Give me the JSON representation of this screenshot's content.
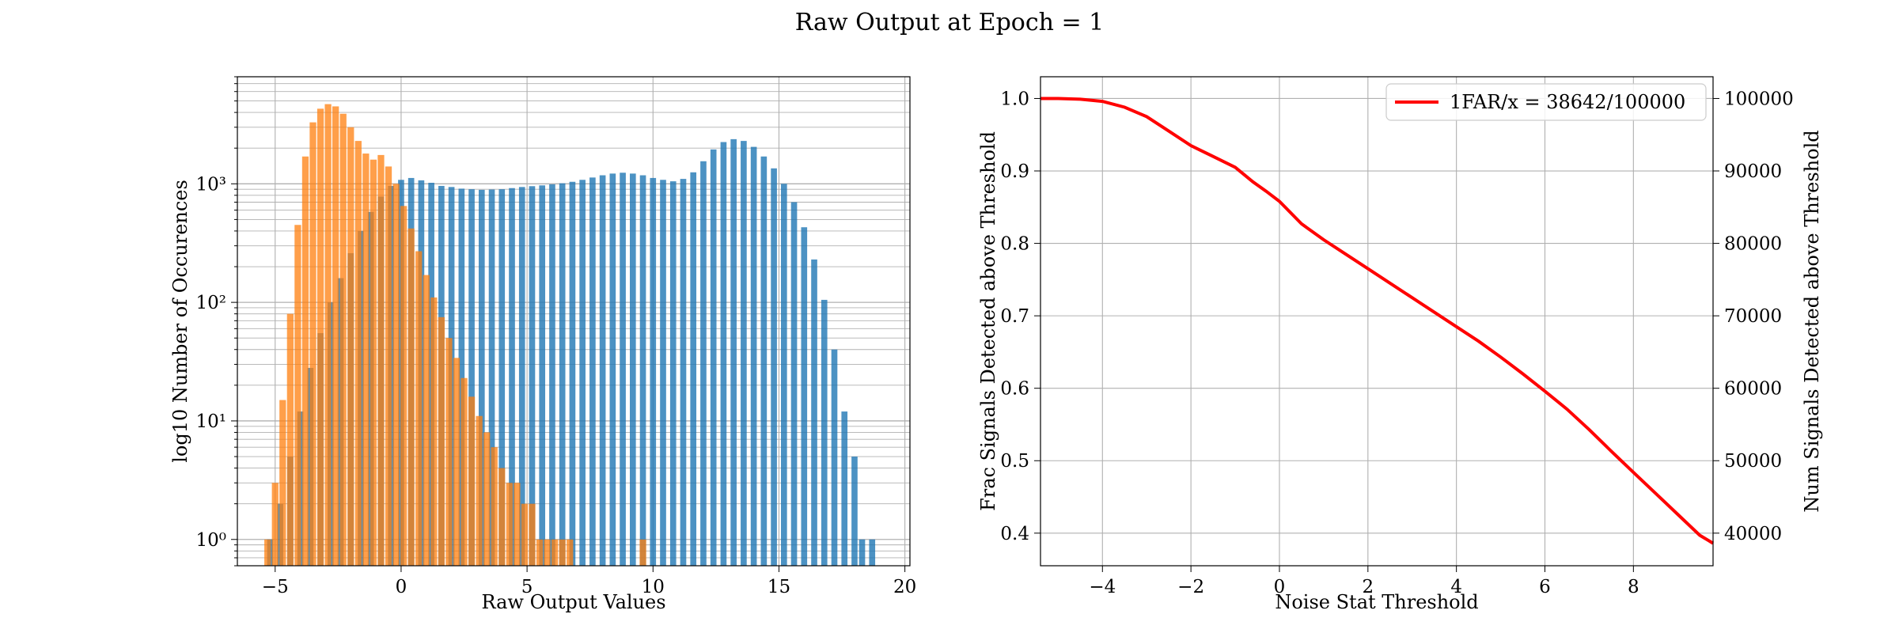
{
  "figure": {
    "title": "Raw Output at Epoch = 1"
  },
  "chart_data": [
    {
      "type": "bar",
      "subtype": "histogram",
      "yscale": "log",
      "xlabel": "Raw Output Values",
      "ylabel": "log10 Number of Occurences",
      "xlim": [
        -6.5,
        20.2
      ],
      "ylim": [
        0.6,
        8000
      ],
      "xticks": [
        -5,
        0,
        5,
        10,
        15,
        20
      ],
      "xtick_labels": [
        "−5",
        "0",
        "5",
        "10",
        "15",
        "20"
      ],
      "yticks": [
        1,
        10,
        100,
        1000
      ],
      "ytick_labels": [
        "10⁰",
        "10¹",
        "10²",
        "10³"
      ],
      "grid": true,
      "series": [
        {
          "color": "#1f77b4",
          "alpha": 0.8,
          "bin_width": 0.24,
          "points": [
            [
              -5.2,
              1
            ],
            [
              -4.8,
              2
            ],
            [
              -4.4,
              5
            ],
            [
              -4.0,
              12
            ],
            [
              -3.6,
              28
            ],
            [
              -3.2,
              55
            ],
            [
              -2.8,
              100
            ],
            [
              -2.4,
              160
            ],
            [
              -2.0,
              260
            ],
            [
              -1.6,
              400
            ],
            [
              -1.2,
              580
            ],
            [
              -0.8,
              780
            ],
            [
              -0.4,
              960
            ],
            [
              0.0,
              1080
            ],
            [
              0.4,
              1120
            ],
            [
              0.8,
              1070
            ],
            [
              1.2,
              1020
            ],
            [
              1.6,
              960
            ],
            [
              2.0,
              940
            ],
            [
              2.4,
              910
            ],
            [
              2.8,
              900
            ],
            [
              3.2,
              890
            ],
            [
              3.6,
              895
            ],
            [
              4.0,
              900
            ],
            [
              4.4,
              920
            ],
            [
              4.8,
              940
            ],
            [
              5.2,
              955
            ],
            [
              5.6,
              970
            ],
            [
              6.0,
              990
            ],
            [
              6.4,
              1010
            ],
            [
              6.8,
              1040
            ],
            [
              7.2,
              1080
            ],
            [
              7.6,
              1130
            ],
            [
              8.0,
              1180
            ],
            [
              8.4,
              1220
            ],
            [
              8.8,
              1240
            ],
            [
              9.2,
              1220
            ],
            [
              9.6,
              1180
            ],
            [
              10.0,
              1120
            ],
            [
              10.4,
              1080
            ],
            [
              10.8,
              1050
            ],
            [
              11.2,
              1100
            ],
            [
              11.6,
              1250
            ],
            [
              12.0,
              1550
            ],
            [
              12.4,
              1950
            ],
            [
              12.8,
              2250
            ],
            [
              13.2,
              2380
            ],
            [
              13.6,
              2300
            ],
            [
              14.0,
              2050
            ],
            [
              14.4,
              1700
            ],
            [
              14.8,
              1350
            ],
            [
              15.2,
              1000
            ],
            [
              15.6,
              700
            ],
            [
              16.0,
              430
            ],
            [
              16.4,
              230
            ],
            [
              16.8,
              105
            ],
            [
              17.2,
              40
            ],
            [
              17.6,
              12
            ],
            [
              18.0,
              5
            ],
            [
              18.3,
              1
            ],
            [
              18.7,
              1
            ]
          ]
        },
        {
          "color": "#ff7f0e",
          "alpha": 0.75,
          "bin_width": 0.26,
          "points": [
            [
              -5.3,
              1
            ],
            [
              -5.0,
              3
            ],
            [
              -4.7,
              15
            ],
            [
              -4.4,
              80
            ],
            [
              -4.1,
              450
            ],
            [
              -3.8,
              1700
            ],
            [
              -3.5,
              3300
            ],
            [
              -3.2,
              4300
            ],
            [
              -2.9,
              4700
            ],
            [
              -2.6,
              4500
            ],
            [
              -2.3,
              3900
            ],
            [
              -2.0,
              3000
            ],
            [
              -1.7,
              2300
            ],
            [
              -1.4,
              1800
            ],
            [
              -1.1,
              1600
            ],
            [
              -0.8,
              1750
            ],
            [
              -0.5,
              1400
            ],
            [
              -0.2,
              1000
            ],
            [
              0.1,
              650
            ],
            [
              0.4,
              420
            ],
            [
              0.7,
              270
            ],
            [
              1.0,
              170
            ],
            [
              1.3,
              110
            ],
            [
              1.6,
              75
            ],
            [
              1.9,
              50
            ],
            [
              2.2,
              34
            ],
            [
              2.5,
              23
            ],
            [
              2.8,
              16
            ],
            [
              3.1,
              11
            ],
            [
              3.4,
              8
            ],
            [
              3.7,
              6
            ],
            [
              4.0,
              4
            ],
            [
              4.3,
              3
            ],
            [
              4.6,
              3
            ],
            [
              4.9,
              2
            ],
            [
              5.2,
              2
            ],
            [
              5.5,
              1
            ],
            [
              5.8,
              1
            ],
            [
              6.1,
              1
            ],
            [
              6.4,
              1
            ],
            [
              6.7,
              1
            ],
            [
              9.6,
              1
            ]
          ]
        }
      ]
    },
    {
      "type": "line",
      "xlabel": "Noise Stat Threshold",
      "ylabel": "Frac Signals Detected above Threshold",
      "ylabel_right": "Num Signals Detected above Threshold",
      "xlim": [
        -5.4,
        9.8
      ],
      "ylim": [
        0.355,
        1.03
      ],
      "ylim_right": [
        35500,
        103000
      ],
      "xticks": [
        -4,
        -2,
        0,
        2,
        4,
        6,
        8
      ],
      "xtick_labels": [
        "−4",
        "−2",
        "0",
        "2",
        "4",
        "6",
        "8"
      ],
      "yticks": [
        0.4,
        0.5,
        0.6,
        0.7,
        0.8,
        0.9,
        1.0
      ],
      "ytick_labels": [
        "0.4",
        "0.5",
        "0.6",
        "0.7",
        "0.8",
        "0.9",
        "1.0"
      ],
      "yticks_right": [
        40000,
        50000,
        60000,
        70000,
        80000,
        90000,
        100000
      ],
      "ytick_labels_right": [
        "40000",
        "50000",
        "60000",
        "70000",
        "80000",
        "90000",
        "100000"
      ],
      "grid": true,
      "legend_position": "top-right",
      "series": [
        {
          "name": "1FAR/x = 38642/100000",
          "color": "#ff0000",
          "x": [
            -5.4,
            -5.0,
            -4.5,
            -4.0,
            -3.5,
            -3.0,
            -2.5,
            -2.0,
            -1.5,
            -1.0,
            -0.8,
            -0.6,
            -0.3,
            0.0,
            0.5,
            1.0,
            1.5,
            2.0,
            2.5,
            3.0,
            3.5,
            4.0,
            4.5,
            5.0,
            5.5,
            6.0,
            6.5,
            7.0,
            7.5,
            8.0,
            8.5,
            9.0,
            9.5,
            9.8
          ],
          "y": [
            1.0,
            1.0,
            0.999,
            0.996,
            0.988,
            0.975,
            0.955,
            0.935,
            0.92,
            0.905,
            0.895,
            0.885,
            0.872,
            0.858,
            0.827,
            0.805,
            0.785,
            0.765,
            0.745,
            0.725,
            0.705,
            0.685,
            0.665,
            0.643,
            0.62,
            0.596,
            0.571,
            0.543,
            0.513,
            0.484,
            0.455,
            0.426,
            0.397,
            0.386
          ]
        }
      ]
    }
  ]
}
